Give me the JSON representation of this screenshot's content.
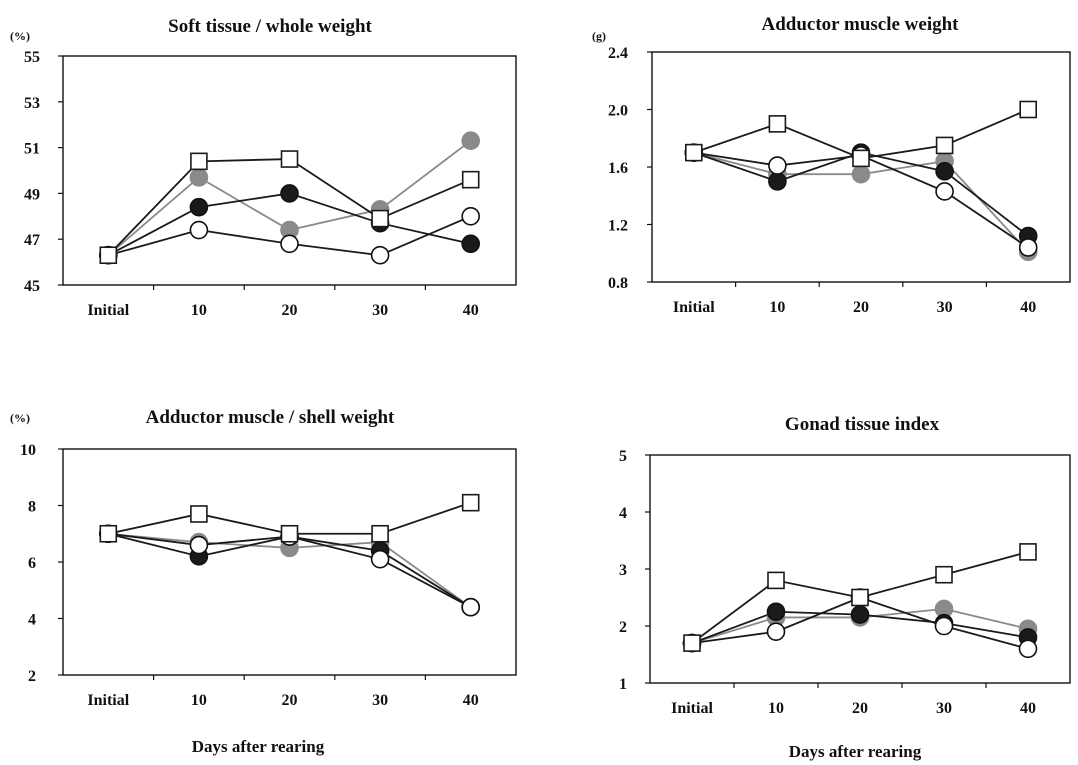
{
  "chart_data": [
    {
      "type": "line",
      "title": "Soft tissue / whole weight",
      "unit": "(%)",
      "xlabel": "",
      "categories": [
        "Initial",
        "10",
        "20",
        "30",
        "40"
      ],
      "yticks": [
        "45",
        "47",
        "49",
        "51",
        "53",
        "55"
      ],
      "ylim": [
        45,
        55
      ],
      "series": [
        {
          "marker": "filled-black",
          "values": [
            46.3,
            48.4,
            49.0,
            47.7,
            46.8
          ]
        },
        {
          "marker": "filled-gray",
          "values": [
            46.3,
            49.7,
            47.4,
            48.3,
            51.3
          ]
        },
        {
          "marker": "open-circle",
          "values": [
            46.3,
            47.4,
            46.8,
            46.3,
            48.0
          ]
        },
        {
          "marker": "open-square",
          "values": [
            46.3,
            50.4,
            50.5,
            47.9,
            49.6
          ]
        }
      ]
    },
    {
      "type": "line",
      "title": "Adductor muscle weight",
      "unit": "(g)",
      "xlabel": "",
      "categories": [
        "Initial",
        "10",
        "20",
        "30",
        "40"
      ],
      "yticks": [
        "0.8",
        "1.2",
        "1.6",
        "2.0",
        "2.4"
      ],
      "ylim": [
        0.8,
        2.4
      ],
      "series": [
        {
          "marker": "filled-black",
          "values": [
            1.7,
            1.5,
            1.7,
            1.57,
            1.12
          ]
        },
        {
          "marker": "filled-gray",
          "values": [
            1.7,
            1.55,
            1.55,
            1.64,
            1.01
          ]
        },
        {
          "marker": "open-circle",
          "values": [
            1.7,
            1.61,
            1.68,
            1.43,
            1.04
          ]
        },
        {
          "marker": "open-square",
          "values": [
            1.7,
            1.9,
            1.66,
            1.75,
            2.0
          ]
        }
      ]
    },
    {
      "type": "line",
      "title": "Adductor muscle / shell weight",
      "unit": "(%)",
      "xlabel": "Days after rearing",
      "categories": [
        "Initial",
        "10",
        "20",
        "30",
        "40"
      ],
      "yticks": [
        "2",
        "4",
        "6",
        "8",
        "10"
      ],
      "ylim": [
        2,
        10
      ],
      "series": [
        {
          "marker": "filled-black",
          "values": [
            7.0,
            6.2,
            6.9,
            6.4,
            4.4
          ]
        },
        {
          "marker": "filled-gray",
          "values": [
            7.0,
            6.7,
            6.5,
            6.7,
            4.4
          ]
        },
        {
          "marker": "open-circle",
          "values": [
            7.0,
            6.6,
            6.9,
            6.1,
            4.4
          ]
        },
        {
          "marker": "open-square",
          "values": [
            7.0,
            7.7,
            7.0,
            7.0,
            8.1
          ]
        }
      ]
    },
    {
      "type": "line",
      "title": "Gonad tissue index",
      "unit": "",
      "xlabel": "Days after rearing",
      "categories": [
        "Initial",
        "10",
        "20",
        "30",
        "40"
      ],
      "yticks": [
        "1",
        "2",
        "3",
        "4",
        "5"
      ],
      "ylim": [
        1,
        5
      ],
      "series": [
        {
          "marker": "filled-black",
          "values": [
            1.7,
            2.25,
            2.2,
            2.05,
            1.8
          ]
        },
        {
          "marker": "filled-gray",
          "values": [
            1.7,
            2.15,
            2.15,
            2.3,
            1.95
          ]
        },
        {
          "marker": "open-circle",
          "values": [
            1.7,
            1.9,
            2.5,
            2.0,
            1.6
          ]
        },
        {
          "marker": "open-square",
          "values": [
            1.7,
            2.8,
            2.5,
            2.9,
            3.3
          ]
        }
      ]
    }
  ],
  "styles": {
    "filled-black": {
      "line": "#1a1a1a",
      "fill": "#1a1a1a"
    },
    "filled-gray": {
      "line": "#8a8a8a",
      "fill": "#8a8a8a"
    },
    "open-circle": {
      "line": "#1a1a1a",
      "fill": "#ffffff"
    },
    "open-square": {
      "line": "#1a1a1a",
      "fill": "#ffffff"
    }
  }
}
